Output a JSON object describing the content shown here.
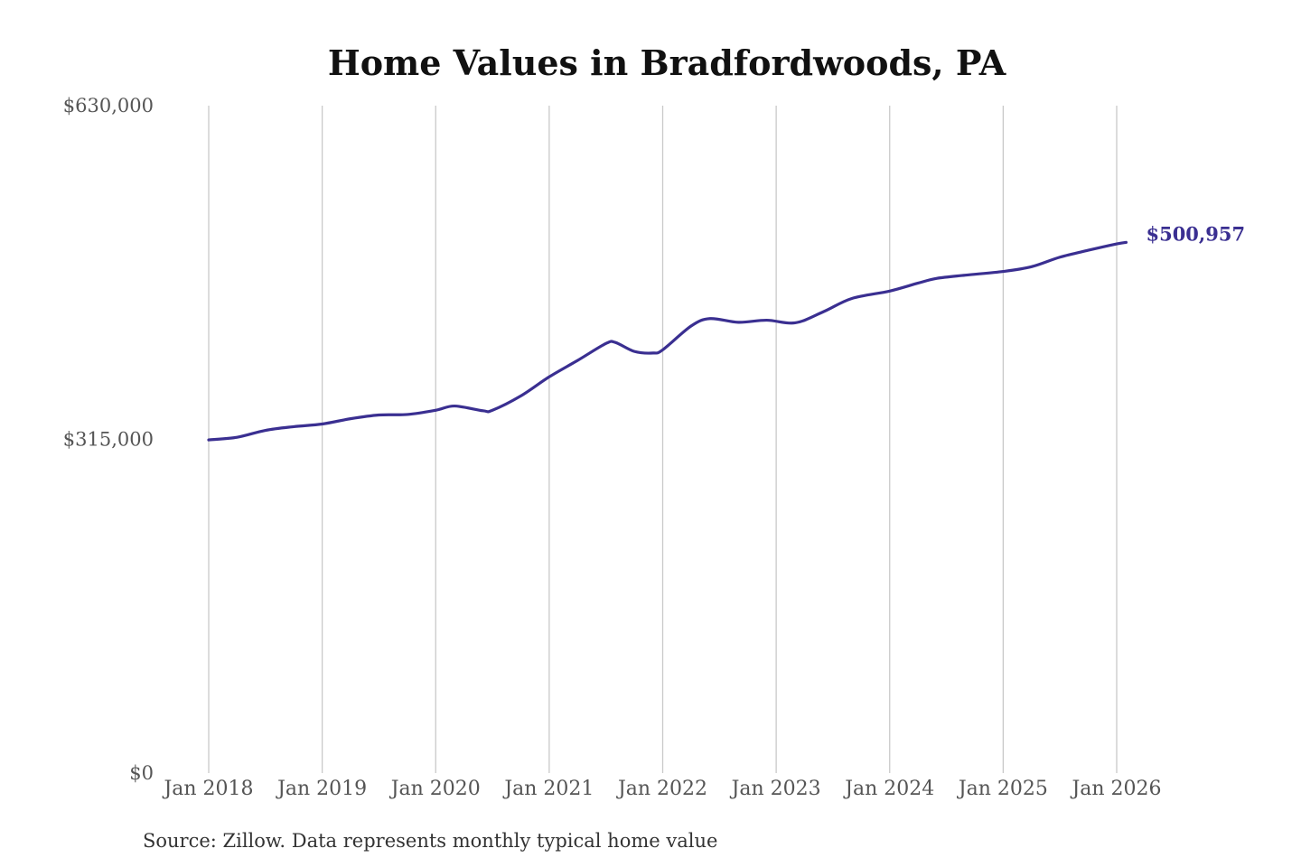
{
  "colors": {
    "line": "#3a2f91",
    "grid": "#c9c9c9",
    "title": "#111111",
    "tick": "#555555"
  },
  "chart_data": {
    "type": "line",
    "title": "Home Values in Bradfordwoods, PA",
    "xlabel": "",
    "ylabel": "",
    "ylim": [
      0,
      630000
    ],
    "grid": {
      "vertical": true,
      "horizontal": false
    },
    "legend": "none",
    "x_tick_labels": [
      "Jan 2018",
      "Jan 2019",
      "Jan 2020",
      "Jan 2021",
      "Jan 2022",
      "Jan 2023",
      "Jan 2024",
      "Jan 2025",
      "Jan 2026"
    ],
    "y_ticks": [
      {
        "value": 0,
        "label": "$0"
      },
      {
        "value": 315000,
        "label": "$315,000"
      },
      {
        "value": 630000,
        "label": "$630,000"
      }
    ],
    "series": [
      {
        "points": [
          {
            "date": "2018-01",
            "value": 314500
          },
          {
            "date": "2018-04",
            "value": 317000
          },
          {
            "date": "2018-07",
            "value": 323500
          },
          {
            "date": "2018-10",
            "value": 327000
          },
          {
            "date": "2019-01",
            "value": 329500
          },
          {
            "date": "2019-04",
            "value": 334500
          },
          {
            "date": "2019-07",
            "value": 338000
          },
          {
            "date": "2019-10",
            "value": 338500
          },
          {
            "date": "2020-01",
            "value": 342500
          },
          {
            "date": "2020-03",
            "value": 346500
          },
          {
            "date": "2020-06",
            "value": 342000
          },
          {
            "date": "2020-07",
            "value": 342500
          },
          {
            "date": "2020-10",
            "value": 356000
          },
          {
            "date": "2021-01",
            "value": 374000
          },
          {
            "date": "2021-04",
            "value": 389500
          },
          {
            "date": "2021-07",
            "value": 405500
          },
          {
            "date": "2021-08",
            "value": 406500
          },
          {
            "date": "2021-10",
            "value": 398000
          },
          {
            "date": "2021-12",
            "value": 396500
          },
          {
            "date": "2022-01",
            "value": 399500
          },
          {
            "date": "2022-04",
            "value": 422000
          },
          {
            "date": "2022-06",
            "value": 429000
          },
          {
            "date": "2022-09",
            "value": 425500
          },
          {
            "date": "2022-12",
            "value": 427500
          },
          {
            "date": "2023-03",
            "value": 425000
          },
          {
            "date": "2023-06",
            "value": 435500
          },
          {
            "date": "2023-09",
            "value": 448000
          },
          {
            "date": "2024-01",
            "value": 455000
          },
          {
            "date": "2024-04",
            "value": 462500
          },
          {
            "date": "2024-06",
            "value": 467000
          },
          {
            "date": "2024-09",
            "value": 470000
          },
          {
            "date": "2025-01",
            "value": 473500
          },
          {
            "date": "2025-04",
            "value": 478000
          },
          {
            "date": "2025-07",
            "value": 487000
          },
          {
            "date": "2025-10",
            "value": 493500
          },
          {
            "date": "2026-01",
            "value": 499500
          },
          {
            "date": "2026-02",
            "value": 500957
          }
        ],
        "end_label": "$500,957"
      }
    ],
    "source": "Source: Zillow. Data represents monthly typical home value"
  }
}
